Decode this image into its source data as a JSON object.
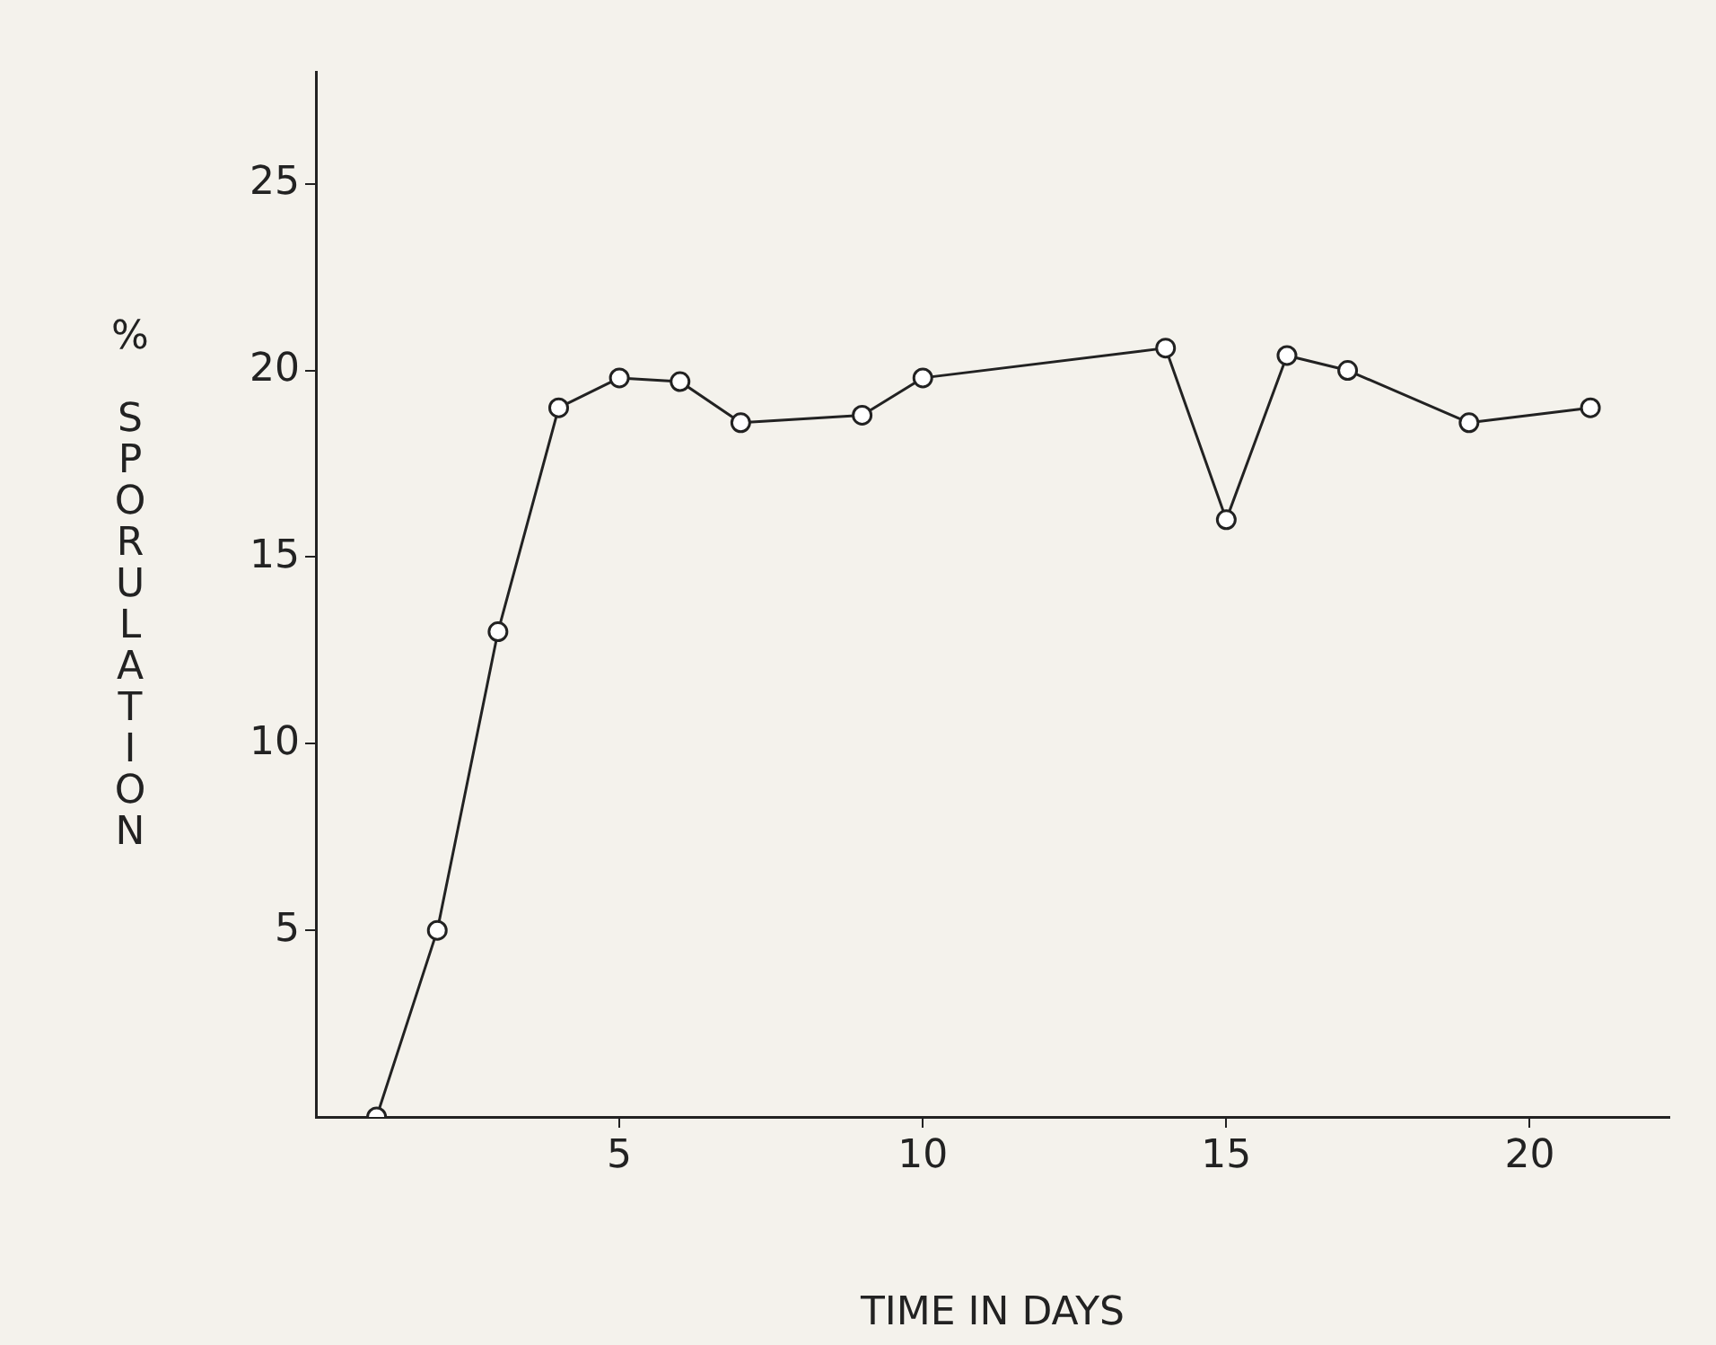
{
  "chart_data": {
    "type": "line",
    "xlabel": "TIME IN DAYS",
    "ylabel": "% SPORULATION",
    "x": [
      1,
      2,
      3,
      4,
      5,
      6,
      7,
      9,
      10,
      14,
      15,
      16,
      17,
      19,
      21
    ],
    "series": [
      {
        "color": "#222222",
        "values": [
          0,
          5,
          13.0,
          19.0,
          19.8,
          19.7,
          18.6,
          18.8,
          19.8,
          20.6,
          16.0,
          20.4,
          20.0,
          18.6,
          19.0
        ]
      }
    ],
    "xlim": [
      0,
      22.3
    ],
    "ylim": [
      0,
      28
    ],
    "xticks": [
      5,
      10,
      15,
      20
    ],
    "yticks": [
      5,
      10,
      15,
      20,
      25
    ],
    "grid": false,
    "legend": false,
    "marker": "circle",
    "line_style": "solid"
  }
}
